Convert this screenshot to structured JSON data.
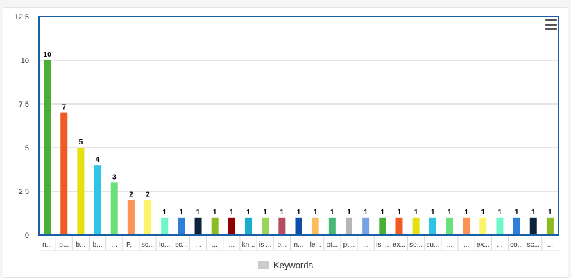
{
  "chart_data": {
    "type": "bar",
    "ylim": [
      0,
      12.5
    ],
    "yticks": [
      "0",
      "2.5",
      "5",
      "7.5",
      "10",
      "12.5"
    ],
    "grid": true,
    "legend": {
      "position": "bottom-center",
      "entries": [
        "Keywords"
      ]
    },
    "series": [
      {
        "name": "Keywords",
        "values": [
          10,
          7,
          5,
          4,
          3,
          2,
          2,
          1,
          1,
          1,
          1,
          1,
          1,
          1,
          1,
          1,
          1,
          1,
          1,
          1,
          1,
          1,
          1,
          1,
          1,
          1,
          1,
          1,
          1,
          1,
          1
        ],
        "data_labels": [
          "10",
          "7",
          "5",
          "4",
          "3",
          "2",
          "2",
          "1",
          "1",
          "1",
          "1",
          "1",
          "1",
          "1",
          "1",
          "1",
          "1",
          "1",
          "1",
          "1",
          "1",
          "1",
          "1",
          "1",
          "1",
          "1",
          "1",
          "1",
          "1",
          "1",
          "1"
        ]
      }
    ],
    "categories": [
      "n...",
      "p...",
      "b...",
      "b...",
      "...",
      "P...",
      "sc...",
      "lo...",
      "sc...",
      "...",
      "...",
      "...",
      "kn...",
      "is ...",
      "b...",
      "n...",
      "le...",
      "pt...",
      "pt...",
      "...",
      "is ...",
      "ex...",
      "so...",
      "su...",
      "...",
      "...",
      "ex...",
      "...",
      "co...",
      "sc...",
      "..."
    ],
    "colors": [
      "#4caf35",
      "#f15a24",
      "#e5e010",
      "#2ec4e6",
      "#6ae07a",
      "#fc9354",
      "#fcf468",
      "#6ef7c8",
      "#2f7ed8",
      "#0d233a",
      "#8bbc21",
      "#910000",
      "#1aadce",
      "#9bd45a",
      "#b54c5e",
      "#0d4fa8",
      "#fcbc5c",
      "#49b876",
      "#b5b5b5",
      "#77a1e5",
      "#4caf35",
      "#f15a24",
      "#e5e010",
      "#2ec4e6",
      "#6ae07a",
      "#fc9354",
      "#fcf468",
      "#6ef7c8",
      "#2f7ed8",
      "#0d233a",
      "#8bbc21"
    ]
  },
  "menu": {
    "icon": "hamburger-menu-icon"
  }
}
